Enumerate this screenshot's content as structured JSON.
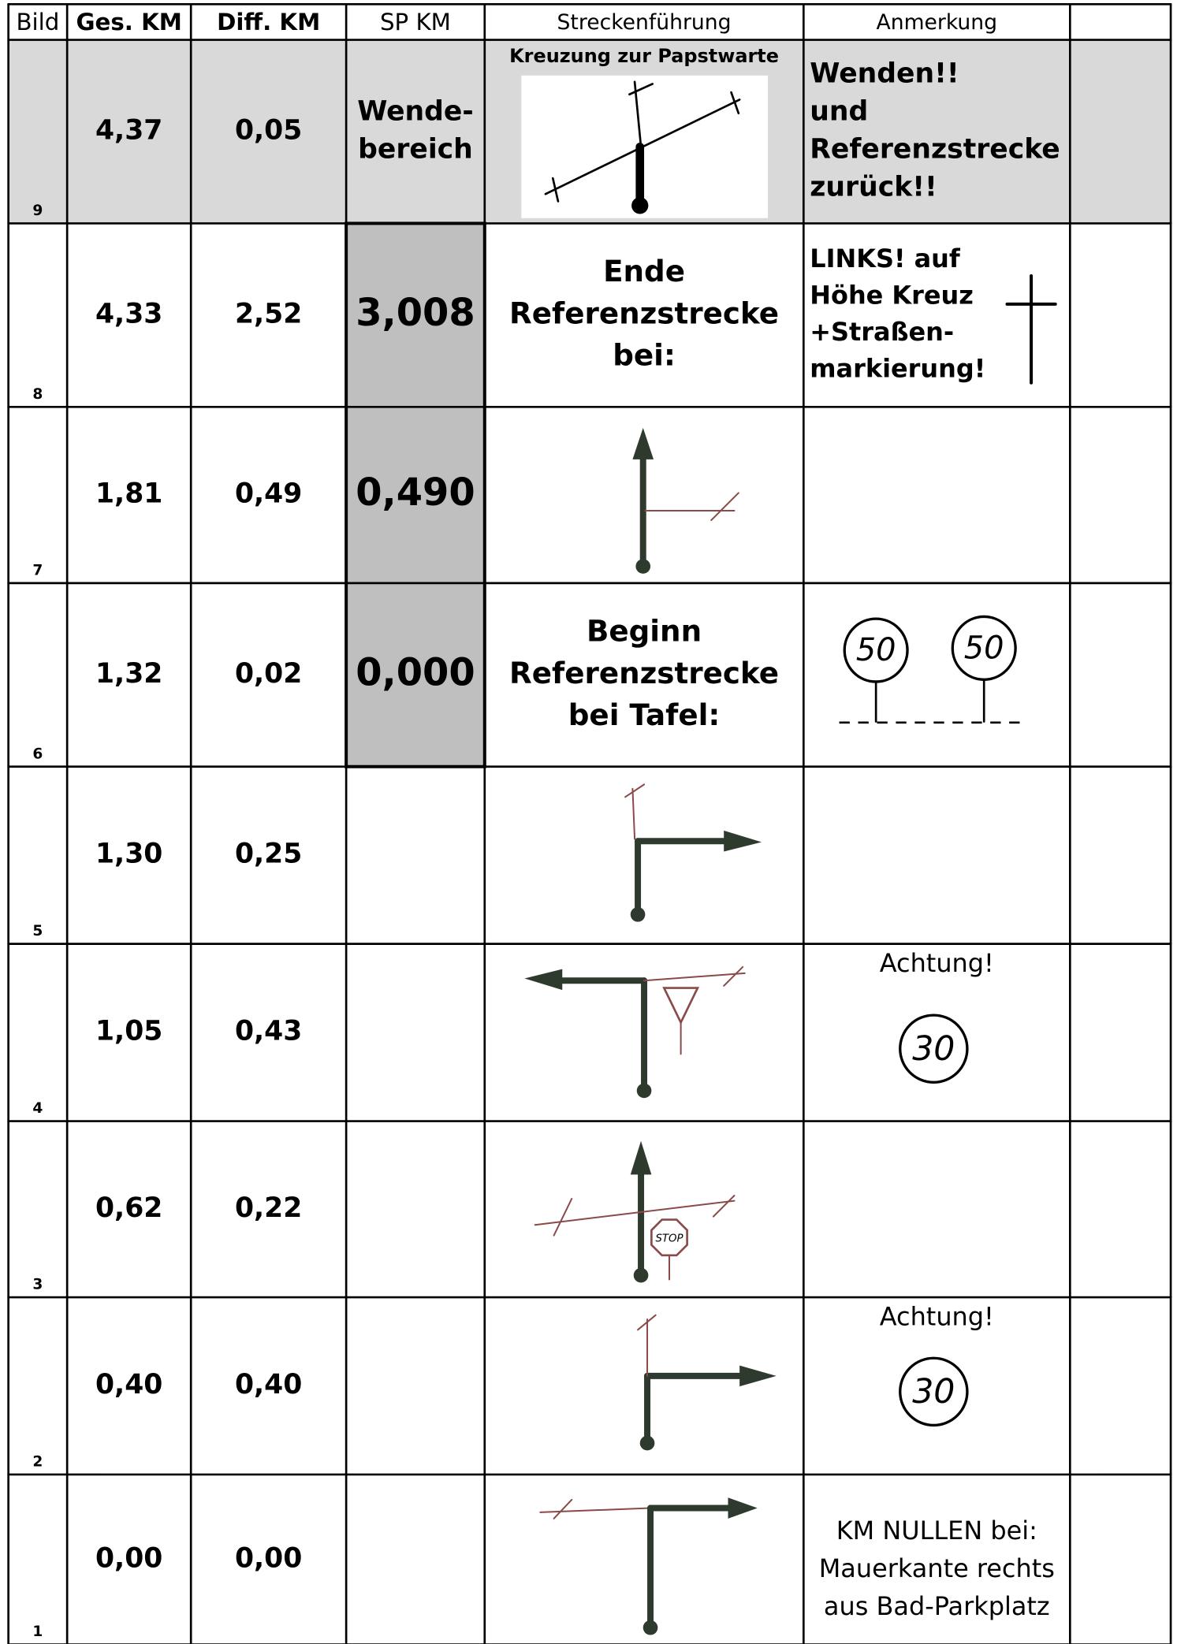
{
  "header": [
    "Bild",
    "Ges. KM",
    "Diff. KM",
    "SP KM",
    "Streckenführung",
    "Anmerkung"
  ],
  "rows": [
    {
      "bild": "9",
      "ges": "4,37",
      "diff": "0,05",
      "sp": [
        "Wende-",
        "bereich"
      ],
      "route": [
        "Kreuzung zur Papstwarte"
      ],
      "note": [
        "Wenden!!",
        "und",
        "Referenzstrecke",
        "zurück!!"
      ]
    },
    {
      "bild": "8",
      "ges": "4,33",
      "diff": "2,52",
      "sp": [
        "3,008"
      ],
      "route": [
        "Ende",
        "Referenzstrecke",
        "bei:"
      ],
      "note": [
        "LINKS! auf",
        "Höhe Kreuz",
        "+Straßen-",
        "markierung!"
      ]
    },
    {
      "bild": "7",
      "ges": "1,81",
      "diff": "0,49",
      "sp": [
        "0,490"
      ]
    },
    {
      "bild": "6",
      "ges": "1,32",
      "diff": "0,02",
      "sp": [
        "0,000"
      ],
      "route": [
        "Beginn",
        "Referenzstrecke",
        "bei Tafel:"
      ],
      "signs": [
        "50",
        "50"
      ]
    },
    {
      "bild": "5",
      "ges": "1,30",
      "diff": "0,25"
    },
    {
      "bild": "4",
      "ges": "1,05",
      "diff": "0,43",
      "note": [
        "Achtung!"
      ],
      "signs": [
        "30"
      ]
    },
    {
      "bild": "3",
      "ges": "0,62",
      "diff": "0,22",
      "signs": [
        "STOP"
      ]
    },
    {
      "bild": "2",
      "ges": "0,40",
      "diff": "0,40",
      "note": [
        "Achtung!"
      ],
      "signs": [
        "30"
      ]
    },
    {
      "bild": "1",
      "ges": "0,00",
      "diff": "0,00",
      "note": [
        "KM  NULLEN bei:",
        "Mauerkante rechts",
        "aus Bad-Parkplatz"
      ]
    }
  ]
}
